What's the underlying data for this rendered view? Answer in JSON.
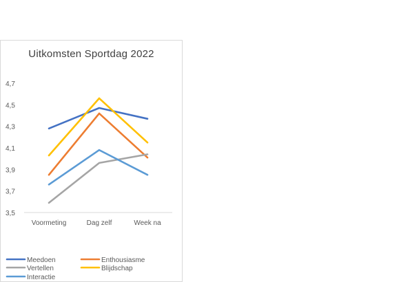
{
  "chart_data": {
    "type": "line",
    "title": "Uitkomsten Sportdag 2022",
    "xlabel": "",
    "ylabel": "",
    "categories": [
      "Voormeting",
      "Dag zelf",
      "Week na"
    ],
    "ylim": [
      3.5,
      4.7
    ],
    "yticks": [
      "3,5",
      "3,7",
      "3,9",
      "4,1",
      "4,3",
      "4,5",
      "4,7"
    ],
    "ytick_values": [
      3.5,
      3.7,
      3.9,
      4.1,
      4.3,
      4.5,
      4.7
    ],
    "grid": false,
    "legend_position": "bottom",
    "series": [
      {
        "name": "Meedoen",
        "color": "#4472c4",
        "values": [
          4.28,
          4.47,
          4.37
        ]
      },
      {
        "name": "Enthousiasme",
        "color": "#ed7d31",
        "values": [
          3.85,
          4.42,
          4.01
        ]
      },
      {
        "name": "Vertellen",
        "color": "#a5a5a5",
        "values": [
          3.59,
          3.96,
          4.04
        ]
      },
      {
        "name": "Blijdschap",
        "color": "#ffc000",
        "values": [
          4.03,
          4.56,
          4.15
        ]
      },
      {
        "name": "Interactie",
        "color": "#5b9bd5",
        "values": [
          3.76,
          4.08,
          3.85
        ]
      }
    ]
  }
}
